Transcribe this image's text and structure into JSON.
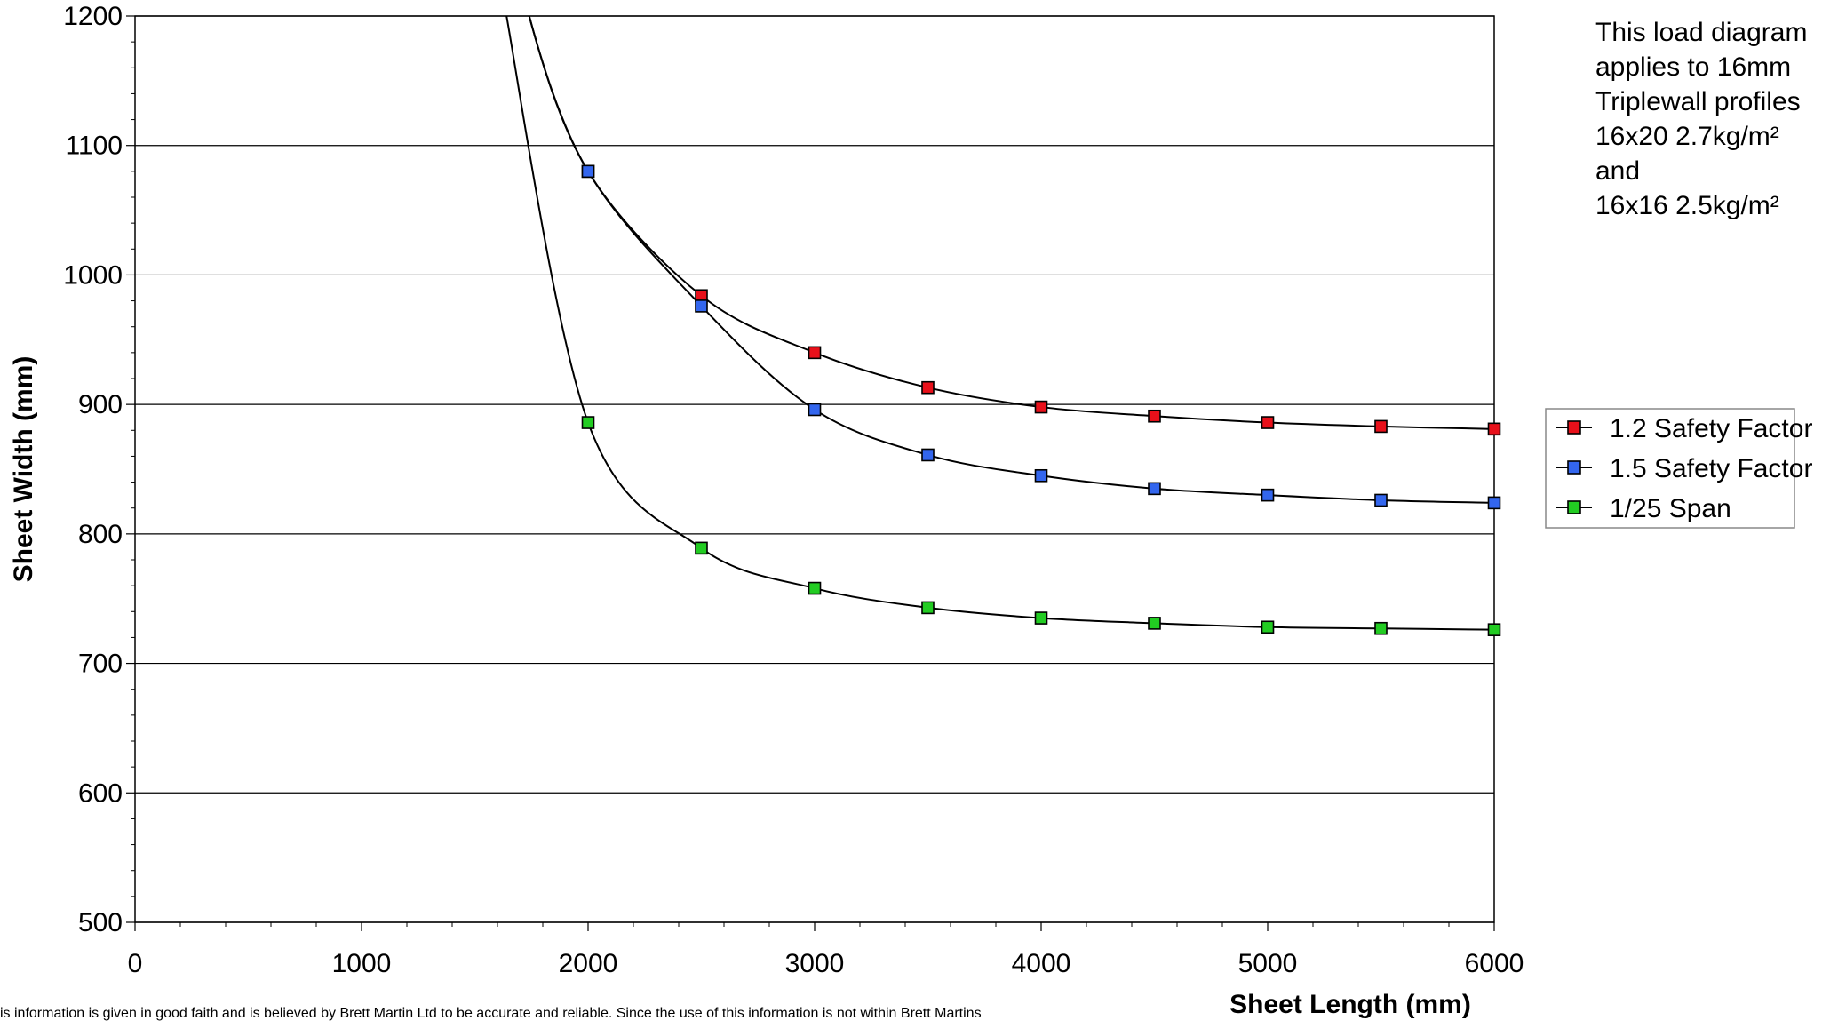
{
  "chart_data": {
    "type": "line",
    "xlabel": "Sheet Length (mm)",
    "ylabel": "Sheet Width (mm)",
    "xlim": [
      0,
      6000
    ],
    "ylim": [
      500,
      1200
    ],
    "xticks": [
      "0",
      "1000",
      "2000",
      "3000",
      "4000",
      "5000",
      "6000"
    ],
    "yticks": [
      "500",
      "600",
      "700",
      "800",
      "900",
      "1000",
      "1100",
      "1200"
    ],
    "grid": "horizontal",
    "legend_position": "right",
    "x": [
      2000,
      2500,
      3000,
      3500,
      4000,
      4500,
      5000,
      5500,
      6000
    ],
    "series": [
      {
        "name": "1.2 Safety Factor",
        "color": "#e8101a",
        "values": [
          1080,
          984,
          940,
          913,
          898,
          891,
          886,
          883,
          881
        ]
      },
      {
        "name": "1.5 Safety Factor",
        "color": "#3366ee",
        "values": [
          1080,
          976,
          896,
          861,
          845,
          835,
          830,
          826,
          824
        ]
      },
      {
        "name": "1/25 Span",
        "color": "#22cc22",
        "values": [
          886,
          789,
          758,
          743,
          735,
          731,
          728,
          727,
          726
        ]
      }
    ]
  },
  "note": {
    "lines": [
      "This load diagram",
      "applies to 16mm",
      "Triplewall profiles",
      "16x20 2.7kg/m²",
      "and",
      "16x16 2.5kg/m²"
    ]
  },
  "disclaimer": "is information is given in good faith and is believed by Brett Martin Ltd to be accurate and reliable. Since the use of this information is not within Brett Martins"
}
